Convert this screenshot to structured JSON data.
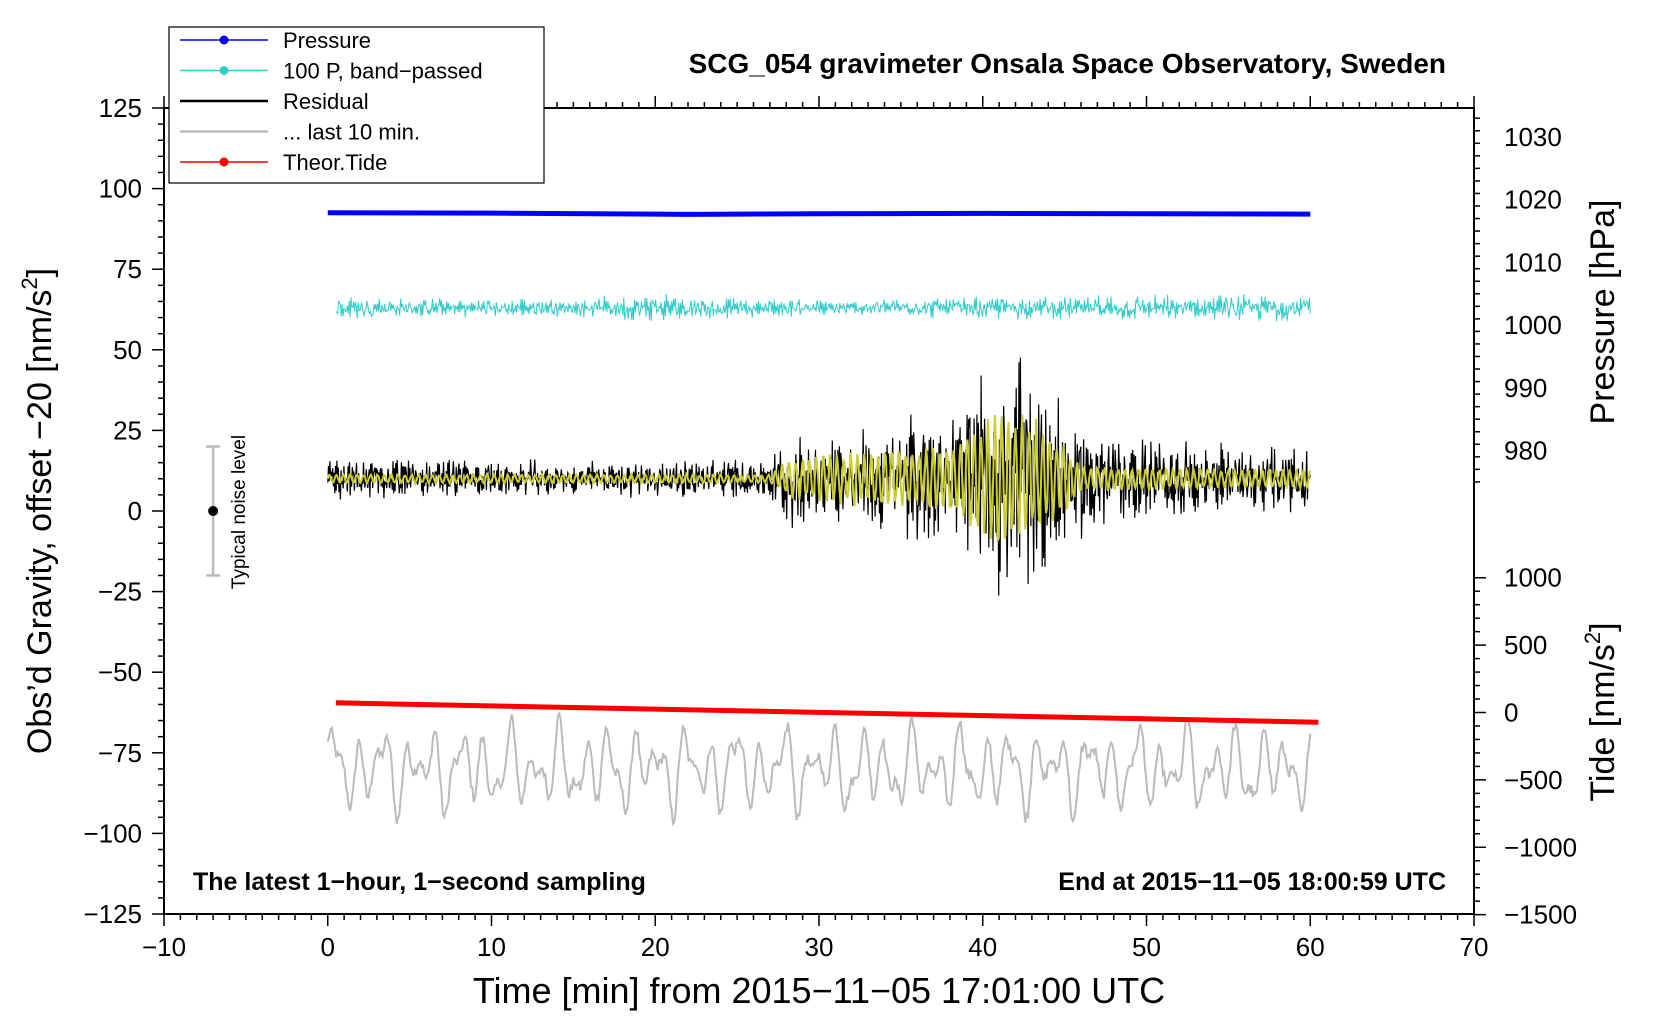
{
  "chart_data": {
    "type": "line",
    "title": "SCG_054 gravimeter Onsala Space Observatory, Sweden",
    "xlabel": "Time [min] from 2015−11−05 17:01:00 UTC",
    "ylabel_left": "Obs’d Gravity, offset −20 [nm/s",
    "ylabel_left_sup": "2",
    "ylabel_left_end": "]",
    "ylabel_right_pressure": "Pressure [hPa]",
    "ylabel_right_tide": "Tide [nm/s",
    "ylabel_right_tide_sup": "2",
    "ylabel_right_tide_end": "]",
    "xlim": [
      -10,
      70
    ],
    "ylim": [
      -125,
      125
    ],
    "xticks": [
      {
        "value": -10,
        "label": "−10"
      },
      {
        "value": 0,
        "label": "0"
      },
      {
        "value": 10,
        "label": "10"
      },
      {
        "value": 20,
        "label": "20"
      },
      {
        "value": 30,
        "label": "30"
      },
      {
        "value": 40,
        "label": "40"
      },
      {
        "value": 50,
        "label": "50"
      },
      {
        "value": 60,
        "label": "60"
      },
      {
        "value": 70,
        "label": "70"
      }
    ],
    "yticks_left": [
      {
        "value": 125,
        "label": "125"
      },
      {
        "value": 100,
        "label": "100"
      },
      {
        "value": 75,
        "label": "75"
      },
      {
        "value": 50,
        "label": "50"
      },
      {
        "value": 25,
        "label": "25"
      },
      {
        "value": 0,
        "label": "0"
      },
      {
        "value": -25,
        "label": "−25"
      },
      {
        "value": -50,
        "label": "−50"
      },
      {
        "value": -75,
        "label": "−75"
      },
      {
        "value": -100,
        "label": "−100"
      },
      {
        "value": -125,
        "label": "−125"
      }
    ],
    "pressure_axis": {
      "ref": {
        "hpa": 1030,
        "left_value": 116
      },
      "units_per_hpa": 1.945,
      "ticks": [
        {
          "value": 1030,
          "label": "1030"
        },
        {
          "value": 1020,
          "label": "1020"
        },
        {
          "value": 1010,
          "label": "1010"
        },
        {
          "value": 1000,
          "label": "1000"
        },
        {
          "value": 990,
          "label": "990"
        },
        {
          "value": 980,
          "label": "980"
        }
      ]
    },
    "tide_axis": {
      "ref": {
        "tide": 0,
        "left_value": -62.5
      },
      "units_per_nms2": 0.0418,
      "ticks": [
        {
          "value": 1000,
          "label": "1000"
        },
        {
          "value": 500,
          "label": "500"
        },
        {
          "value": 0,
          "label": "0"
        },
        {
          "value": -500,
          "label": "−500"
        },
        {
          "value": -1000,
          "label": "−1000"
        },
        {
          "value": -1500,
          "label": "−1500"
        }
      ]
    },
    "series": [
      {
        "name": "Pressure",
        "color": "#0000ff",
        "style": "thick",
        "x": [
          0,
          10,
          20,
          22,
          30,
          40,
          50,
          60
        ],
        "y": [
          92.5,
          92.4,
          92.1,
          92.0,
          92.2,
          92.3,
          92.2,
          92.1
        ]
      },
      {
        "name": "100 P, band−passed",
        "color": "#33cccc",
        "style": "noise",
        "x_range": [
          0.5,
          60
        ],
        "center": 63,
        "envelope": {
          "x": [
            0.5,
            5,
            10,
            15,
            20,
            25,
            30,
            35,
            40,
            45,
            50,
            55,
            60
          ],
          "amp": [
            5,
            3,
            3.5,
            3,
            5,
            3.5,
            3,
            3,
            4,
            4,
            4.5,
            4.5,
            5
          ]
        }
      },
      {
        "name": "Residual",
        "color": "#000000",
        "style": "noise",
        "x_range": [
          0,
          60
        ],
        "center": 10,
        "envelope": {
          "x": [
            0,
            10,
            20,
            27,
            28,
            29,
            30,
            35,
            36,
            38,
            39,
            41,
            42,
            43,
            45,
            46,
            50,
            55,
            60
          ],
          "amp": [
            7,
            6.5,
            6,
            7,
            14,
            20,
            15,
            18,
            24,
            20,
            32,
            42,
            44,
            40,
            28,
            20,
            14,
            12,
            11
          ]
        }
      },
      {
        "name": "... last 10 min.",
        "color": "#bbbbbb",
        "style": "wave",
        "x_range": [
          0,
          60
        ],
        "center": -80,
        "amp": 12
      },
      {
        "name": "Theor.Tide",
        "color": "#ff0000",
        "style": "thick",
        "x": [
          0.5,
          60.5
        ],
        "y": [
          -59.5,
          -65.5
        ]
      },
      {
        "name": "band-filtered residual",
        "color": "#cccc33",
        "style": "noise",
        "x_range": [
          0,
          60
        ],
        "center": 10,
        "envelope": {
          "x": [
            0,
            27,
            28,
            30,
            35,
            38,
            39,
            41,
            43,
            45,
            46,
            60
          ],
          "amp": [
            1.5,
            1.5,
            6,
            8,
            10,
            10,
            16,
            22,
            20,
            12,
            4,
            3
          ]
        }
      }
    ],
    "legend": {
      "position": "top-left",
      "entries": [
        {
          "label": "Pressure",
          "color": "#0000ff",
          "marker": true
        },
        {
          "label": "100 P, band−passed",
          "color": "#33cccc",
          "marker": true
        },
        {
          "label": "Residual",
          "color": "#000000",
          "marker": false
        },
        {
          "label": "... last 10 min.",
          "color": "#bbbbbb",
          "marker": false
        },
        {
          "label": "Theor.Tide",
          "color": "#ff0000",
          "marker": true
        }
      ]
    },
    "annotations": {
      "noise_label": "Typical noise level",
      "noise_bar": {
        "x": -7,
        "center": 0,
        "half_range": 20
      },
      "bottom_left": "The latest 1−hour, 1−second sampling",
      "bottom_right": "End at 2015−11−05 18:00:59 UTC"
    }
  }
}
